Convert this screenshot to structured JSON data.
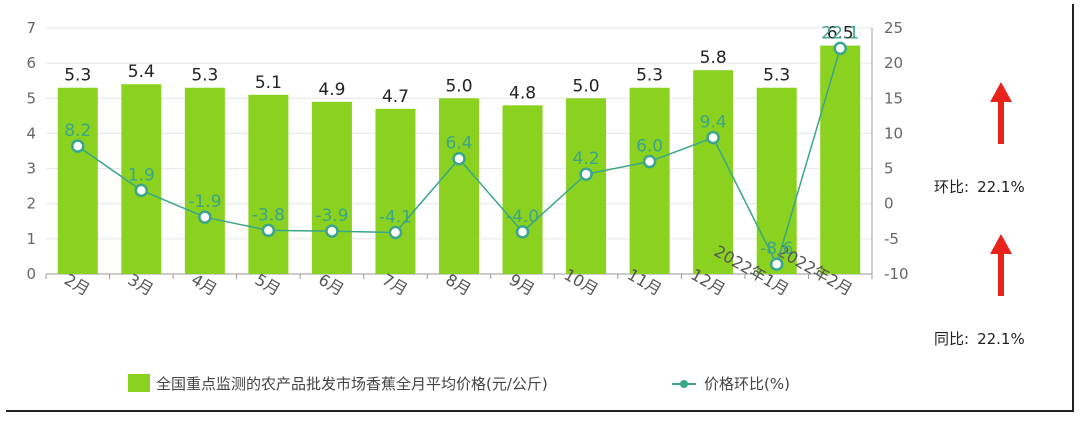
{
  "chart_data": {
    "type": "bar+line",
    "categories": [
      "2月",
      "3月",
      "4月",
      "5月",
      "6月",
      "7月",
      "8月",
      "9月",
      "10月",
      "11月",
      "12月",
      "2022年1月",
      "2022年2月"
    ],
    "series": [
      {
        "name": "全国重点监测的农产品批发市场香蕉全月平均价格(元/公斤)",
        "type": "bar",
        "axis": "left",
        "values": [
          5.3,
          5.4,
          5.3,
          5.1,
          4.9,
          4.7,
          5.0,
          4.8,
          5.0,
          5.3,
          5.8,
          5.3,
          6.5
        ]
      },
      {
        "name": "价格环比(%)",
        "type": "line",
        "axis": "right",
        "values": [
          8.2,
          1.9,
          -1.9,
          -3.8,
          -3.9,
          -4.1,
          6.4,
          -4.0,
          4.2,
          6.0,
          9.4,
          -8.6,
          22.1
        ]
      }
    ],
    "y_left": {
      "min": 0,
      "max": 7,
      "ticks": [
        0,
        1,
        2,
        3,
        4,
        5,
        6,
        7
      ]
    },
    "y_right": {
      "min": -10,
      "max": 25,
      "ticks": [
        -10,
        -5,
        0,
        5,
        10,
        15,
        20,
        25
      ]
    },
    "grid": true,
    "legend_position": "bottom",
    "colors": {
      "bar": "#8ad21f",
      "line": "#3aa58a",
      "bar_label": "#222222",
      "line_label": "#3aa58a"
    }
  },
  "side_panel": {
    "mom_label": "环比:",
    "mom_value": "22.1%",
    "yoy_label": "同比:",
    "yoy_value": "22.1%",
    "arrow_color": "#e8231c",
    "icon": "red-up-arrow-icon"
  }
}
